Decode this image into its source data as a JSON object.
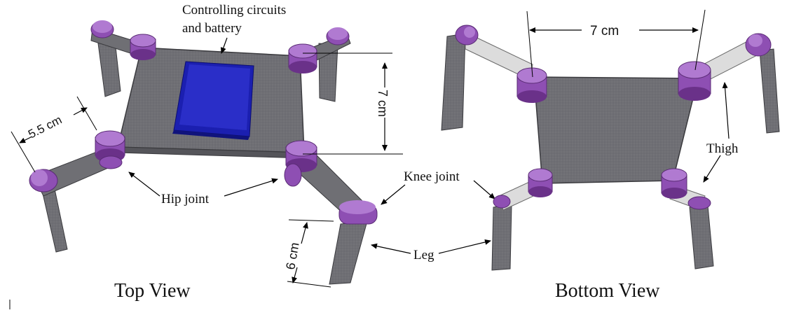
{
  "views": {
    "top": {
      "title": "Top View",
      "labels": {
        "controller": [
          "Controlling circuits",
          "and battery"
        ],
        "hip_joint": "Hip joint",
        "knee_joint": "Knee joint",
        "leg": "Leg"
      },
      "dimensions": {
        "body_length": "7 cm",
        "thigh_length": "5.5 cm",
        "leg_length": "6 cm"
      }
    },
    "bottom": {
      "title": "Bottom View",
      "labels": {
        "thigh": "Thigh"
      },
      "dimensions": {
        "body_width": "7 cm"
      }
    }
  },
  "colors": {
    "body": "#6f6f74",
    "body_dark": "#55555a",
    "body_light": "#9b9ba0",
    "joint": "#8e4fb3",
    "joint_dark": "#6a3189",
    "joint_light": "#b07ad1",
    "battery": "#1b1fb0",
    "battery_light": "#3b3fd6",
    "thigh_bottom": "#dcdcdc"
  },
  "icons": {
    "motor": "purple-cylinder-joint-icon"
  }
}
